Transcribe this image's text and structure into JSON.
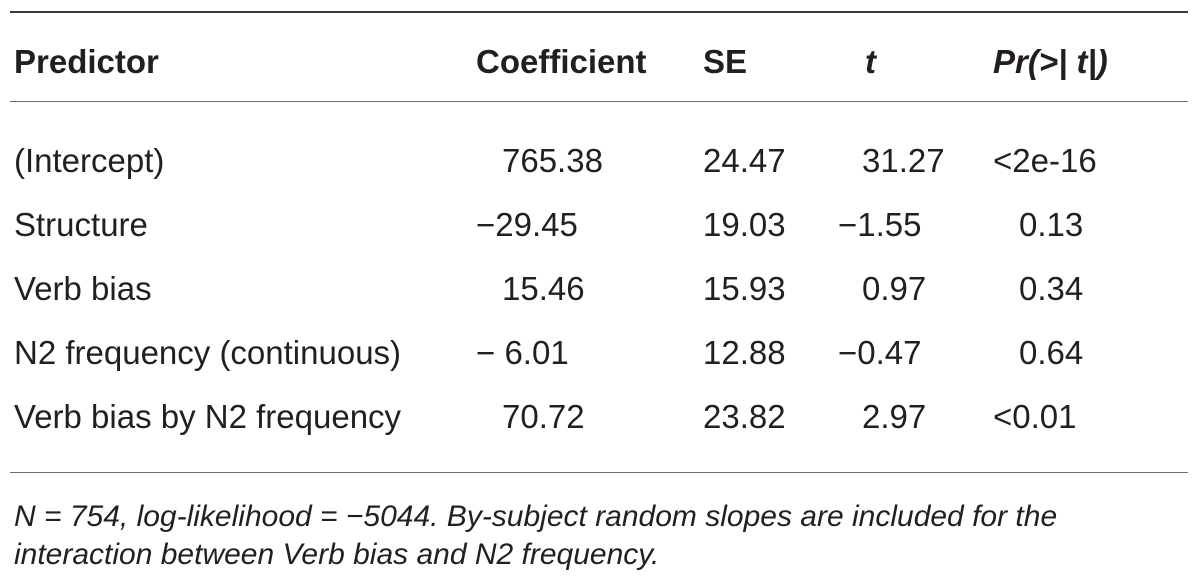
{
  "table": {
    "headers": {
      "predictor": "Predictor",
      "coefficient": "Coefficient",
      "se": "SE",
      "t": "t",
      "pr": "Pr(>| t|)"
    },
    "rows": [
      {
        "predictor": "(Intercept)",
        "coefficient": "765.38",
        "se": "24.47",
        "t": "31.27",
        "pr": "<2e-16"
      },
      {
        "predictor": "Structure",
        "coefficient": "−29.45",
        "se": "19.03",
        "t": "−1.55",
        "pr": "0.13"
      },
      {
        "predictor": "Verb bias",
        "coefficient": "15.46",
        "se": "15.93",
        "t": "0.97",
        "pr": "0.34"
      },
      {
        "predictor": "N2 frequency (continuous)",
        "coefficient": "− 6.01",
        "se": "12.88",
        "t": "−0.47",
        "pr": "0.64"
      },
      {
        "predictor": "Verb bias by N2 frequency",
        "coefficient": "70.72",
        "se": "23.82",
        "t": "2.97",
        "pr": "<0.01"
      }
    ]
  },
  "footnote": {
    "line1": "N = 754, log-likelihood = −5044. By-subject random slopes are included for the",
    "line2": "interaction between Verb bias and N2 frequency."
  }
}
